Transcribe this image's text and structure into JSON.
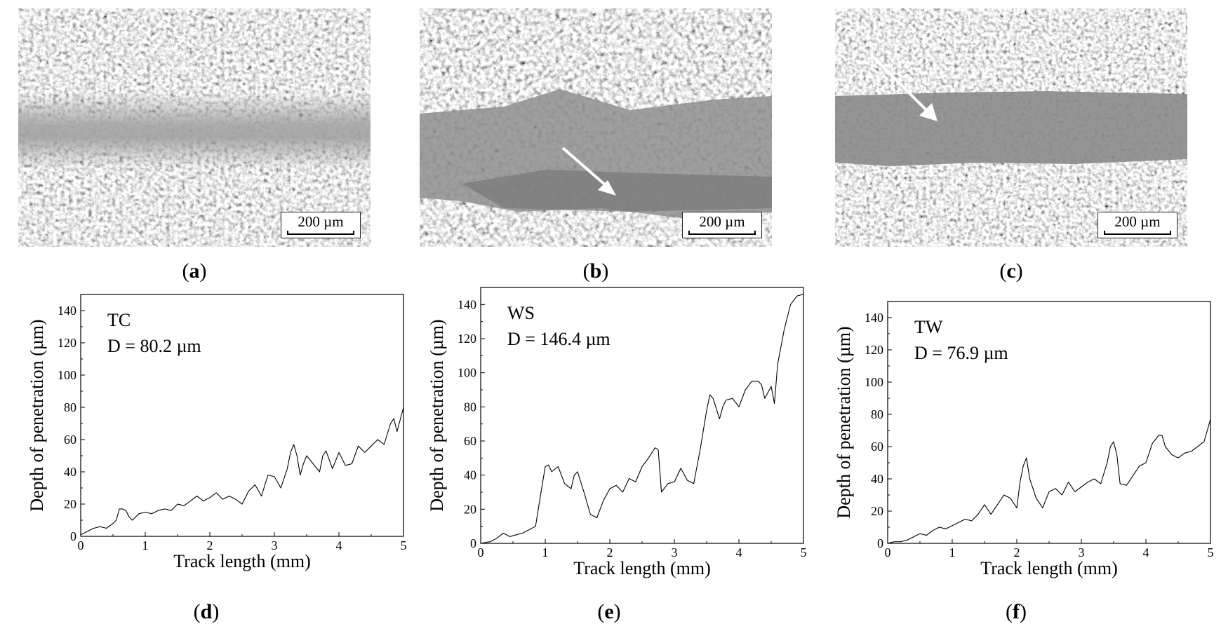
{
  "micrographs": [
    {
      "label": "a",
      "scale_bar": "200 µm",
      "arrow": false
    },
    {
      "label": "b",
      "scale_bar": "200 µm",
      "arrow": true
    },
    {
      "label": "c",
      "scale_bar": "200 µm",
      "arrow": true
    }
  ],
  "chart_data": [
    {
      "type": "line",
      "panel": "d",
      "annotation_name": "TC",
      "annotation_value": "D = 80.2 µm",
      "xlabel": "Track length (mm)",
      "ylabel": "Depth of penetration (µm)",
      "xlim": [
        0,
        5
      ],
      "ylim": [
        0,
        150
      ],
      "xticks": [
        0,
        1,
        2,
        3,
        4,
        5
      ],
      "yticks": [
        0,
        20,
        40,
        60,
        80,
        100,
        120,
        140
      ],
      "series": [
        {
          "x": [
            0,
            0.1,
            0.2,
            0.3,
            0.4,
            0.5,
            0.55,
            0.6,
            0.65,
            0.7,
            0.75,
            0.8,
            0.85,
            0.9,
            1.0,
            1.1,
            1.2,
            1.3,
            1.4,
            1.5,
            1.6,
            1.7,
            1.8,
            1.9,
            2.0,
            2.1,
            2.2,
            2.3,
            2.4,
            2.5,
            2.6,
            2.7,
            2.8,
            2.9,
            3.0,
            3.1,
            3.2,
            3.25,
            3.3,
            3.35,
            3.4,
            3.45,
            3.5,
            3.6,
            3.7,
            3.75,
            3.8,
            3.9,
            4.0,
            4.05,
            4.1,
            4.2,
            4.3,
            4.4,
            4.5,
            4.6,
            4.7,
            4.8,
            4.85,
            4.9,
            5.0
          ],
          "y": [
            1,
            3,
            5,
            6,
            5,
            8,
            10,
            17,
            17,
            16,
            12,
            10,
            12,
            14,
            15,
            14,
            16,
            17,
            16,
            20,
            19,
            22,
            25,
            22,
            24,
            27,
            23,
            25,
            23,
            20,
            28,
            32,
            25,
            38,
            37,
            30,
            42,
            52,
            57,
            50,
            38,
            45,
            50,
            45,
            40,
            50,
            53,
            42,
            52,
            48,
            44,
            45,
            56,
            52,
            56,
            60,
            57,
            70,
            73,
            65,
            80
          ]
        }
      ]
    },
    {
      "type": "line",
      "panel": "e",
      "annotation_name": "WS",
      "annotation_value": "D = 146.4 µm",
      "xlabel": "Track length (mm)",
      "ylabel": "Depth of penetration (µm)",
      "xlim": [
        0,
        5
      ],
      "ylim": [
        0,
        150
      ],
      "xticks": [
        0,
        1,
        2,
        3,
        4,
        5
      ],
      "yticks": [
        0,
        20,
        40,
        60,
        80,
        100,
        120,
        140
      ],
      "series": [
        {
          "x": [
            0,
            0.15,
            0.25,
            0.35,
            0.45,
            0.55,
            0.65,
            0.75,
            0.85,
            0.9,
            1.0,
            1.05,
            1.1,
            1.2,
            1.3,
            1.4,
            1.45,
            1.5,
            1.6,
            1.7,
            1.8,
            1.9,
            2.0,
            2.1,
            2.2,
            2.3,
            2.4,
            2.5,
            2.6,
            2.7,
            2.75,
            2.8,
            2.9,
            3.0,
            3.1,
            3.2,
            3.3,
            3.4,
            3.5,
            3.55,
            3.6,
            3.7,
            3.75,
            3.8,
            3.9,
            4.0,
            4.1,
            4.2,
            4.3,
            4.35,
            4.4,
            4.5,
            4.55,
            4.6,
            4.7,
            4.8,
            4.9,
            5.0
          ],
          "y": [
            0,
            1,
            3,
            6,
            4,
            5,
            6,
            8,
            10,
            22,
            45,
            46,
            42,
            45,
            35,
            32,
            40,
            42,
            30,
            17,
            15,
            25,
            32,
            34,
            30,
            38,
            36,
            45,
            50,
            56,
            55,
            30,
            35,
            36,
            44,
            37,
            35,
            55,
            78,
            87,
            85,
            73,
            80,
            84,
            85,
            80,
            90,
            95,
            95,
            93,
            85,
            92,
            82,
            105,
            125,
            140,
            145,
            146
          ]
        }
      ]
    },
    {
      "type": "line",
      "panel": "f",
      "annotation_name": "TW",
      "annotation_value": "D = 76.9 µm",
      "xlabel": "Track length (mm)",
      "ylabel": "Depth of penetration (µm)",
      "xlim": [
        0,
        5
      ],
      "ylim": [
        0,
        150
      ],
      "xticks": [
        0,
        1,
        2,
        3,
        4,
        5
      ],
      "yticks": [
        0,
        20,
        40,
        60,
        80,
        100,
        120,
        140
      ],
      "series": [
        {
          "x": [
            0,
            0.1,
            0.2,
            0.3,
            0.4,
            0.5,
            0.6,
            0.7,
            0.8,
            0.9,
            1.0,
            1.1,
            1.2,
            1.3,
            1.4,
            1.5,
            1.6,
            1.7,
            1.8,
            1.9,
            2.0,
            2.05,
            2.1,
            2.15,
            2.2,
            2.3,
            2.4,
            2.5,
            2.6,
            2.7,
            2.8,
            2.9,
            3.0,
            3.1,
            3.2,
            3.3,
            3.4,
            3.45,
            3.5,
            3.55,
            3.6,
            3.7,
            3.8,
            3.9,
            4.0,
            4.1,
            4.2,
            4.25,
            4.3,
            4.4,
            4.5,
            4.6,
            4.7,
            4.8,
            4.9,
            5.0
          ],
          "y": [
            0,
            1,
            1,
            2,
            4,
            6,
            5,
            8,
            10,
            9,
            11,
            13,
            15,
            14,
            18,
            24,
            18,
            24,
            30,
            28,
            22,
            38,
            48,
            53,
            40,
            28,
            22,
            32,
            34,
            30,
            38,
            32,
            35,
            38,
            40,
            37,
            50,
            60,
            63,
            55,
            37,
            36,
            42,
            48,
            50,
            62,
            67,
            67,
            60,
            55,
            53,
            56,
            57,
            60,
            63,
            77
          ]
        }
      ]
    }
  ]
}
